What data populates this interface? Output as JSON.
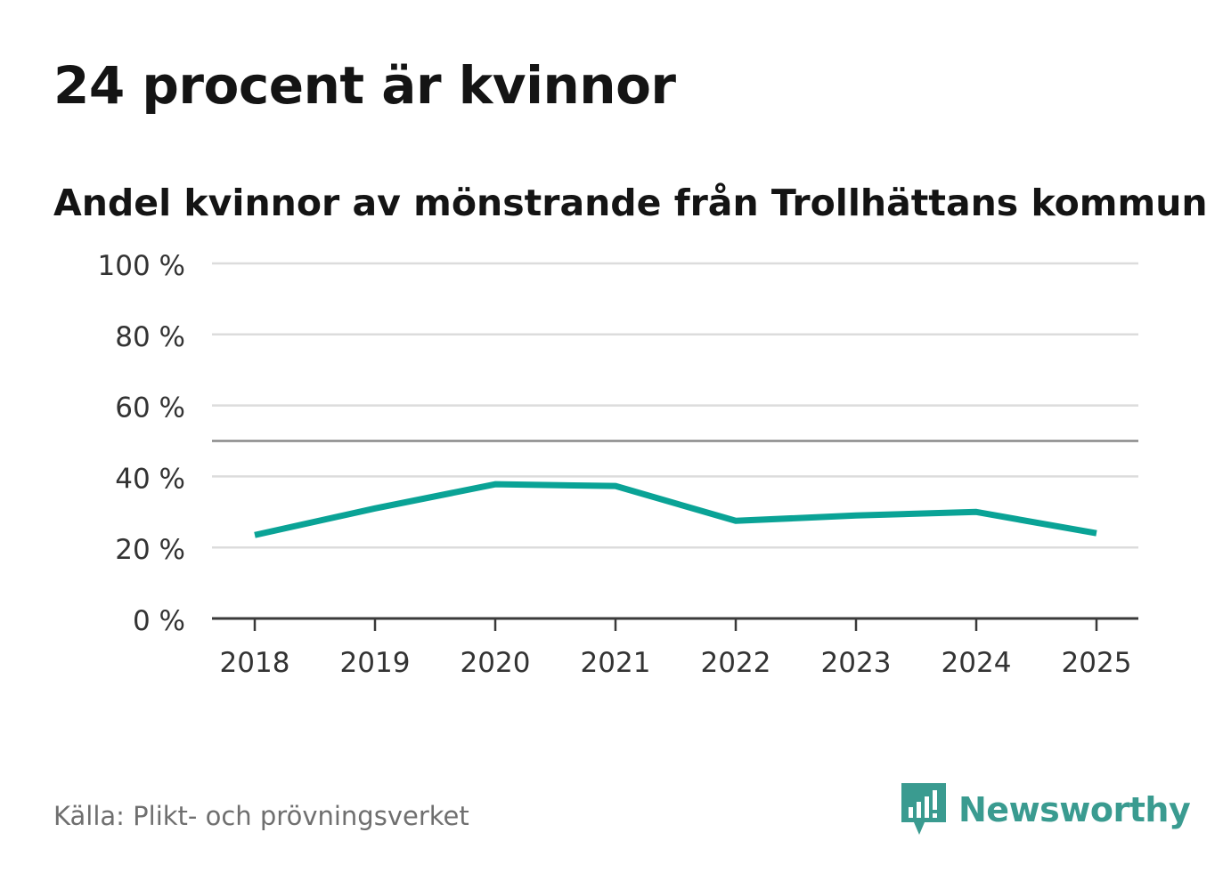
{
  "chart_data": {
    "type": "line",
    "title": "24 procent är kvinnor",
    "subtitle": "Andel kvinnor av mönstrande från Trollhättans kommun",
    "categories": [
      "2018",
      "2019",
      "2020",
      "2021",
      "2022",
      "2023",
      "2024",
      "2025"
    ],
    "series": [
      {
        "name": "Andel kvinnor",
        "values": [
          23.5,
          31,
          37.8,
          37.3,
          27.5,
          29,
          30,
          24
        ]
      }
    ],
    "y_ticks": [
      0,
      20,
      40,
      60,
      80,
      100
    ],
    "y_tick_labels": [
      "0 %",
      "20 %",
      "40 %",
      "60 %",
      "80 %",
      "100 %"
    ],
    "reference_line": 50,
    "ylim": [
      0,
      100
    ],
    "xlabel": "",
    "ylabel": "",
    "grid": true,
    "line_color": "#0aa396",
    "grid_color": "#dcdcdc",
    "reference_color": "#8a8a8a",
    "axis_color": "#3a3a3a"
  },
  "footer": {
    "source": "Källa: Plikt- och prövningsverket",
    "brand": "Newsworthy",
    "brand_icon": "chart-bubble-icon",
    "brand_color": "#3a9b90"
  }
}
